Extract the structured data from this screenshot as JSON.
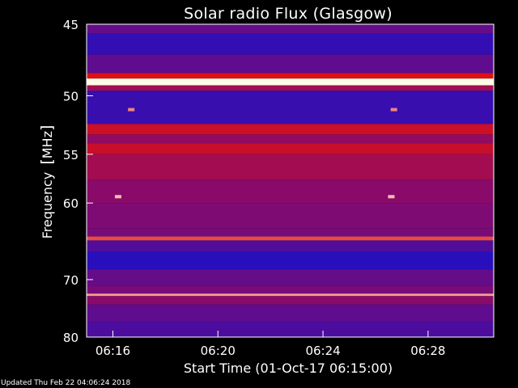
{
  "chart_data": {
    "type": "heatmap",
    "title": "Solar radio Flux (Glasgow)",
    "ylabel_text": "Frequency",
    "ylabel_unit": "MHz",
    "xlabel": "Start Time (01-Oct-17 06:15:00)",
    "ylim": [
      80,
      45
    ],
    "xlim_minutes": [
      0,
      15.5
    ],
    "y_ticks": [
      45,
      50,
      55,
      60,
      70,
      80
    ],
    "x_ticks": [
      "06:16",
      "06:20",
      "06:24",
      "06:28"
    ],
    "x_tick_minutes": [
      1,
      5,
      9,
      13
    ],
    "colors": {
      "low": "#1a10c8",
      "mid": "#8a0a6a",
      "high": "#e01010",
      "peak": "#fffbe8",
      "background": "#000000",
      "text": "#ffffff"
    },
    "bands": [
      {
        "from": 45.0,
        "to": 45.6,
        "level": 0.3
      },
      {
        "from": 45.6,
        "to": 47.0,
        "level": 0.1
      },
      {
        "from": 47.0,
        "to": 48.3,
        "level": 0.28
      },
      {
        "from": 48.3,
        "to": 48.7,
        "level": 0.8
      },
      {
        "from": 48.7,
        "to": 49.2,
        "level": 1.0
      },
      {
        "from": 49.2,
        "to": 49.6,
        "level": 0.55
      },
      {
        "from": 49.6,
        "to": 52.3,
        "level": 0.12
      },
      {
        "from": 52.3,
        "to": 53.2,
        "level": 0.72
      },
      {
        "from": 53.2,
        "to": 54.0,
        "level": 0.48
      },
      {
        "from": 54.0,
        "to": 55.0,
        "level": 0.7
      },
      {
        "from": 55.0,
        "to": 57.5,
        "level": 0.55
      },
      {
        "from": 57.5,
        "to": 60.0,
        "level": 0.45
      },
      {
        "from": 60.0,
        "to": 63.0,
        "level": 0.4
      },
      {
        "from": 63.0,
        "to": 64.0,
        "level": 0.38
      },
      {
        "from": 64.0,
        "to": 64.5,
        "level": 0.85
      },
      {
        "from": 64.5,
        "to": 66.0,
        "level": 0.22
      },
      {
        "from": 66.0,
        "to": 68.5,
        "level": 0.06
      },
      {
        "from": 68.5,
        "to": 71.0,
        "level": 0.3
      },
      {
        "from": 71.0,
        "to": 72.2,
        "level": 0.38
      },
      {
        "from": 72.2,
        "to": 72.6,
        "level": 0.92
      },
      {
        "from": 72.6,
        "to": 74.0,
        "level": 0.45
      },
      {
        "from": 74.0,
        "to": 77.0,
        "level": 0.28
      },
      {
        "from": 77.0,
        "to": 80.0,
        "level": 0.2
      }
    ],
    "spots": [
      {
        "minute": 1.2,
        "freq": 59.3,
        "level": 0.95
      },
      {
        "minute": 11.6,
        "freq": 59.3,
        "level": 0.95
      },
      {
        "minute": 1.7,
        "freq": 51.1,
        "level": 0.9
      },
      {
        "minute": 11.7,
        "freq": 51.1,
        "level": 0.9
      }
    ]
  },
  "footer_text": "Updated Thu Feb 22 04:06:24 2018"
}
